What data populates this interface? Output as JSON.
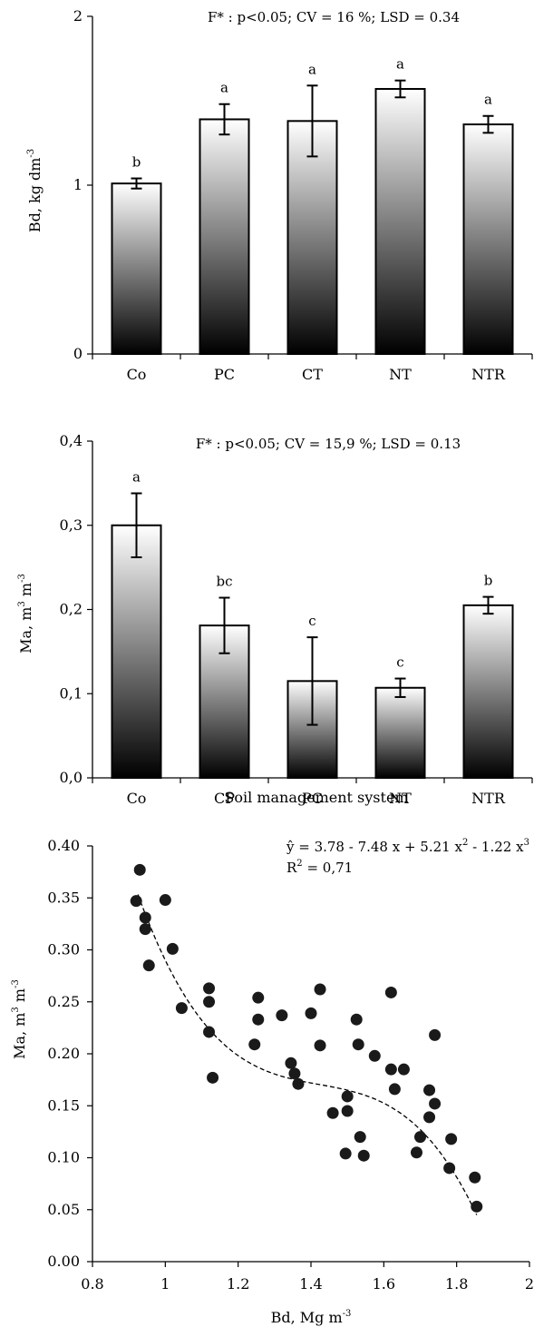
{
  "chart_data": [
    {
      "type": "bar",
      "annotation": "F* : p<0.05; CV = 16 %; LSD = 0.34",
      "ylabel_main": "Bd, kg dm",
      "ylabel_sup": "-3",
      "xlabel": "",
      "ylim": [
        0,
        2
      ],
      "yticks": [
        0,
        1,
        2
      ],
      "ytick_labels": [
        "0",
        "1",
        "2"
      ],
      "categories": [
        "Co",
        "PC",
        "CT",
        "NT",
        "NTR"
      ],
      "values": [
        1.01,
        1.39,
        1.38,
        1.57,
        1.36
      ],
      "errors": [
        0.03,
        0.09,
        0.21,
        0.05,
        0.05
      ],
      "letters": [
        "b",
        "a",
        "a",
        "a",
        "a"
      ],
      "grid": false,
      "bar_fill": "vertical gradient white to black",
      "colors": {
        "bar_top": "#ffffff",
        "bar_bottom": "#000000"
      }
    },
    {
      "type": "bar",
      "annotation": "F* : p<0.05; CV = 15,9 %; LSD = 0.13",
      "ylabel_main": "Ma, m",
      "ylabel_sup1": "3",
      "ylabel_mid": " m",
      "ylabel_sup2": "-3",
      "xlabel": "Soil management system",
      "ylim": [
        0,
        0.4
      ],
      "yticks": [
        0,
        0.1,
        0.2,
        0.3,
        0.4
      ],
      "ytick_labels": [
        "0,0",
        "0,1",
        "0,2",
        "0,3",
        "0,4"
      ],
      "categories": [
        "Co",
        "CP",
        "PC",
        "NT",
        "NTR"
      ],
      "values": [
        0.3,
        0.181,
        0.115,
        0.107,
        0.205
      ],
      "errors": [
        0.038,
        0.033,
        0.052,
        0.011,
        0.01
      ],
      "letters": [
        "a",
        "bc",
        "c",
        "c",
        "b"
      ],
      "grid": false,
      "bar_fill": "vertical gradient white to black",
      "colors": {
        "bar_top": "#ffffff",
        "bar_bottom": "#000000"
      }
    },
    {
      "type": "scatter",
      "equation": "ŷ = 3.78 - 7.48 x + 5.21 x",
      "equation_sup1": "2",
      "equation_mid": " - 1.22 x",
      "equation_sup2": "3",
      "r2_label": "R",
      "r2_sup": "2",
      "r2_value": " = 0,71",
      "xlabel_main": "Bd, Mg m",
      "xlabel_sup": "-3",
      "ylabel_main": "Ma, m",
      "ylabel_sup1": "3",
      "ylabel_mid": " m",
      "ylabel_sup2": "-3",
      "xlim": [
        0.8,
        2.0
      ],
      "ylim": [
        0.0,
        0.4
      ],
      "xticks": [
        0.8,
        1.0,
        1.2,
        1.4,
        1.6,
        1.8,
        2.0
      ],
      "xtick_labels": [
        "0.8",
        "1",
        "1.2",
        "1.4",
        "1.6",
        "1.8",
        "2"
      ],
      "yticks": [
        0.0,
        0.05,
        0.1,
        0.15,
        0.2,
        0.25,
        0.3,
        0.35,
        0.4
      ],
      "ytick_labels": [
        "0.00",
        "0.05",
        "0.10",
        "0.15",
        "0.20",
        "0.25",
        "0.30",
        "0.35",
        "0.40"
      ],
      "fit": {
        "coefficients": [
          3.78,
          -7.48,
          5.21,
          -1.22
        ],
        "x_range": [
          0.925,
          1.855
        ],
        "style": "dashed"
      },
      "points": [
        [
          0.93,
          0.377
        ],
        [
          0.92,
          0.347
        ],
        [
          0.945,
          0.331
        ],
        [
          0.945,
          0.32
        ],
        [
          1.0,
          0.348
        ],
        [
          0.955,
          0.285
        ],
        [
          1.02,
          0.301
        ],
        [
          1.045,
          0.244
        ],
        [
          1.12,
          0.263
        ],
        [
          1.12,
          0.25
        ],
        [
          1.12,
          0.221
        ],
        [
          1.13,
          0.177
        ],
        [
          1.245,
          0.209
        ],
        [
          1.255,
          0.254
        ],
        [
          1.255,
          0.233
        ],
        [
          1.32,
          0.237
        ],
        [
          1.345,
          0.191
        ],
        [
          1.355,
          0.181
        ],
        [
          1.365,
          0.171
        ],
        [
          1.4,
          0.239
        ],
        [
          1.425,
          0.262
        ],
        [
          1.425,
          0.208
        ],
        [
          1.46,
          0.143
        ],
        [
          1.495,
          0.104
        ],
        [
          1.5,
          0.159
        ],
        [
          1.5,
          0.145
        ],
        [
          1.525,
          0.233
        ],
        [
          1.53,
          0.209
        ],
        [
          1.535,
          0.12
        ],
        [
          1.545,
          0.102
        ],
        [
          1.575,
          0.198
        ],
        [
          1.62,
          0.259
        ],
        [
          1.62,
          0.185
        ],
        [
          1.63,
          0.166
        ],
        [
          1.655,
          0.185
        ],
        [
          1.69,
          0.105
        ],
        [
          1.7,
          0.12
        ],
        [
          1.725,
          0.165
        ],
        [
          1.725,
          0.139
        ],
        [
          1.74,
          0.218
        ],
        [
          1.74,
          0.152
        ],
        [
          1.78,
          0.09
        ],
        [
          1.785,
          0.118
        ],
        [
          1.85,
          0.081
        ],
        [
          1.855,
          0.053
        ]
      ],
      "grid": false,
      "colors": {
        "marker": "#1a1a1a"
      }
    }
  ]
}
